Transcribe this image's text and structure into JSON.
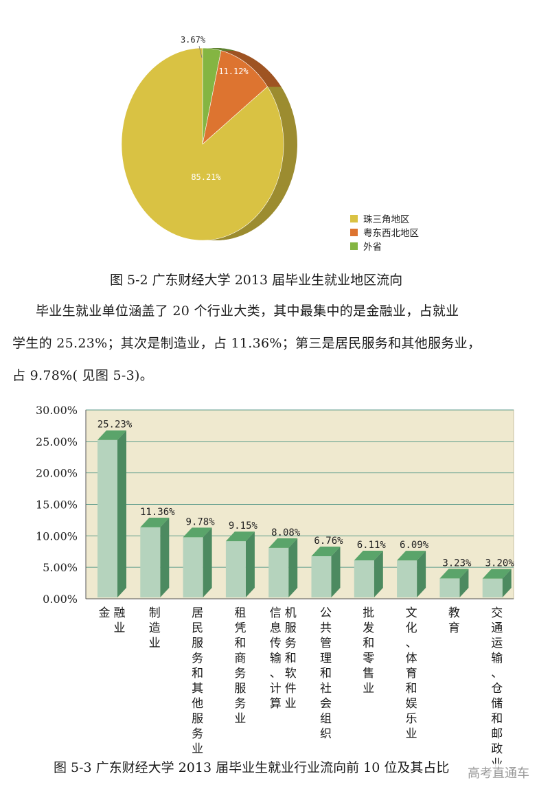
{
  "chart_data": [
    {
      "type": "pie",
      "title": "",
      "slices": [
        {
          "label": "珠三角地区",
          "value": 85.21,
          "value_label": "85.21%",
          "color": "#d9c243"
        },
        {
          "label": "粤东西北地区",
          "value": 11.12,
          "value_label": "11.12%",
          "color": "#dd7430"
        },
        {
          "label": "外省",
          "value": 3.67,
          "value_label": "3.67%",
          "color": "#84b542"
        }
      ],
      "legend_position": "bottom-right"
    },
    {
      "type": "bar",
      "title": "",
      "categories": [
        "金融业",
        "制造业",
        "居民服务和其他服务业",
        "租凭和商务服务业",
        "信息传输、计算机服务和软件业",
        "公共管理和社会组织",
        "批发和零售业",
        "文化、体育和娱乐业",
        "教育",
        "交通运输、仓储和邮政业"
      ],
      "category_columns": [
        [
          "金",
          "融业"
        ],
        [
          "制造业"
        ],
        [
          "居民服务和其他服务业"
        ],
        [
          "租凭和商务服务业"
        ],
        [
          "信息传输、计算",
          "机服务和软件业"
        ],
        [
          "公共管理和社会组织"
        ],
        [
          "批发和零售业"
        ],
        [
          "文化、体育和娱乐业"
        ],
        [
          "教育"
        ],
        [
          "交通运输、仓储和邮政业"
        ]
      ],
      "values": [
        25.23,
        11.36,
        9.78,
        9.15,
        8.08,
        6.76,
        6.11,
        6.09,
        3.23,
        3.2
      ],
      "value_labels": [
        "25.23%",
        "11.36%",
        "9.78%",
        "9.15%",
        "8.08%",
        "6.76%",
        "6.11%",
        "6.09%",
        "3.23%",
        "3.20%"
      ],
      "y_ticks": [
        "0.00%",
        "5.00%",
        "10.00%",
        "15.00%",
        "20.00%",
        "25.00%",
        "30.00%"
      ],
      "ylim": [
        0,
        30
      ],
      "grid": true,
      "colors": {
        "plot_bg": "#efe9cf",
        "bar_front": "#b5d3bd",
        "bar_top": "#5aa46a",
        "bar_side": "#4c8a60",
        "grid": "#5a9a8a"
      }
    }
  ],
  "captions": {
    "pie": "图 5-2   广东财经大学 2013 届毕业生就业地区流向",
    "bar": "图 5-3   广东财经大学 2013 届毕业生就业行业流向前 10 位及其占比"
  },
  "paragraph": {
    "line1": "毕业生就业单位涵盖了 20 个行业大类，其中最集中的是金融业，占就业",
    "line2": "学生的 25.23%；其次是制造业，占 11.36%；第三是居民服务和其他服务业，",
    "line3": "占 9.78%( 见图 5-3)。"
  },
  "watermark": "高考直通车"
}
